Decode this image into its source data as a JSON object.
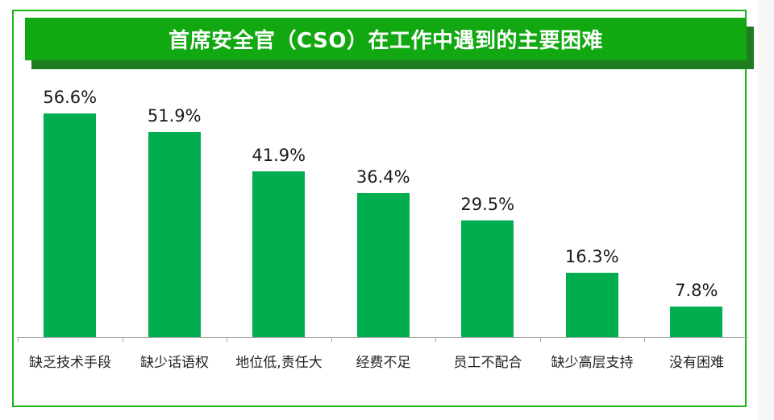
{
  "title": "首席安全官（CSO）在工作中遇到的主要困难",
  "colors": {
    "bar": "#00ae4f",
    "title_bg": "#12a812",
    "title_shadow": "#1f7d1f",
    "frame": "#1db31d"
  },
  "labels": {
    "values": [
      "56.6%",
      "51.9%",
      "41.9%",
      "36.4%",
      "29.5%",
      "16.3%",
      "7.8%"
    ],
    "categories": [
      "缺乏技术手段",
      "缺少话语权",
      "地位低,责任大",
      "经费不足",
      "员工不配合",
      "缺少高层支持",
      "没有困难"
    ]
  },
  "chart_data": {
    "type": "bar",
    "title": "首席安全官（CSO）在工作中遇到的主要困难",
    "categories": [
      "缺乏技术手段",
      "缺少话语权",
      "地位低,责任大",
      "经费不足",
      "员工不配合",
      "缺少高层支持",
      "没有困难"
    ],
    "values": [
      56.6,
      51.9,
      41.9,
      36.4,
      29.5,
      16.3,
      7.8
    ],
    "unit": "%",
    "xlabel": "",
    "ylabel": "",
    "ylim": [
      0,
      62
    ],
    "grid": false,
    "legend": null,
    "data_labels": true
  }
}
